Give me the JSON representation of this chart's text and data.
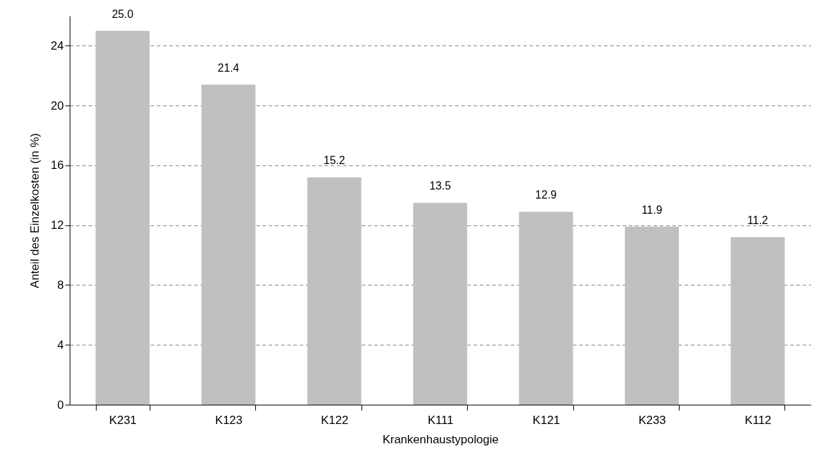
{
  "chart_data": {
    "type": "bar",
    "xlabel": "Krankenhaustypologie",
    "ylabel": "Anteil des Einzelkosten (in %)",
    "categories": [
      "K231",
      "K123",
      "K122",
      "K111",
      "K121",
      "K233",
      "K112"
    ],
    "values": [
      25.0,
      21.4,
      15.2,
      13.5,
      12.9,
      11.9,
      11.2
    ],
    "value_labels": [
      "25.0",
      "21.4",
      "15.2",
      "13.5",
      "12.9",
      "11.9",
      "11.2"
    ],
    "color": "#c0c0c0",
    "ylim": [
      0,
      26
    ],
    "yticks": [
      0,
      4,
      8,
      12,
      16,
      20,
      24
    ],
    "grid": "y"
  }
}
